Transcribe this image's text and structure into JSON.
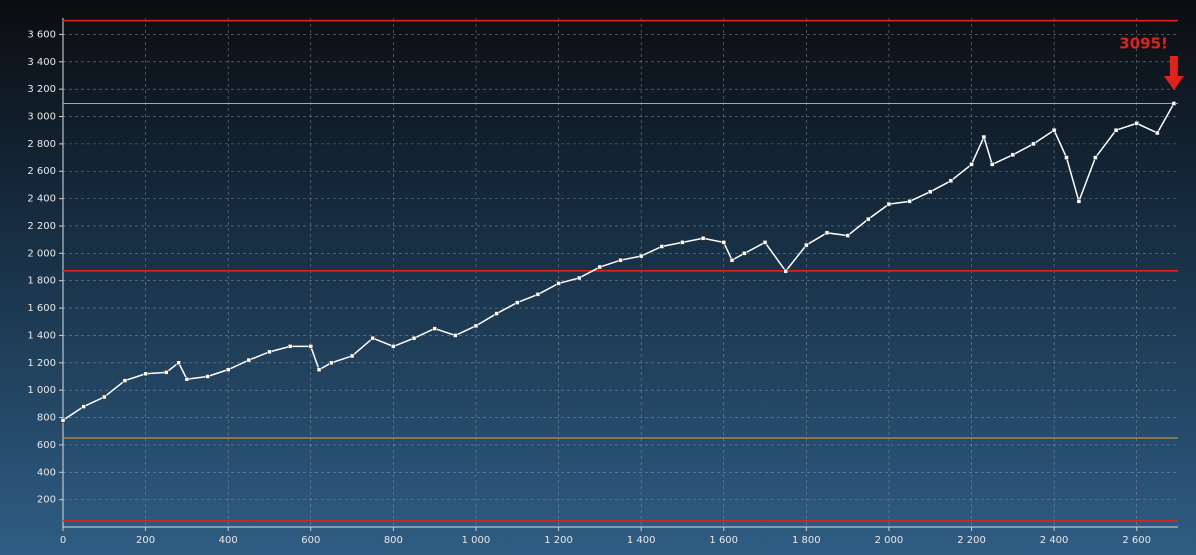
{
  "chart_data": {
    "type": "line",
    "annotation": "3095!",
    "x": [
      0,
      50,
      100,
      150,
      200,
      250,
      280,
      300,
      350,
      400,
      450,
      500,
      550,
      600,
      620,
      650,
      700,
      750,
      800,
      850,
      900,
      950,
      1000,
      1050,
      1100,
      1150,
      1200,
      1250,
      1300,
      1350,
      1400,
      1450,
      1500,
      1550,
      1600,
      1620,
      1650,
      1700,
      1750,
      1800,
      1850,
      1900,
      1950,
      2000,
      2050,
      2100,
      2150,
      2200,
      2230,
      2250,
      2300,
      2350,
      2400,
      2430,
      2460,
      2500,
      2550,
      2600,
      2650,
      2690
    ],
    "values": [
      780,
      880,
      950,
      1070,
      1120,
      1130,
      1200,
      1080,
      1100,
      1150,
      1220,
      1280,
      1320,
      1320,
      1150,
      1200,
      1250,
      1380,
      1320,
      1380,
      1450,
      1400,
      1470,
      1560,
      1640,
      1700,
      1780,
      1820,
      1900,
      1950,
      1980,
      2050,
      2080,
      2110,
      2080,
      1950,
      2000,
      2080,
      1870,
      2060,
      2150,
      2130,
      2250,
      2360,
      2380,
      2450,
      2530,
      2650,
      2850,
      2650,
      2720,
      2800,
      2900,
      2700,
      2380,
      2700,
      2900,
      2950,
      2880,
      3095
    ],
    "color": "#ffffff",
    "reference_lines": [
      {
        "value": 3700,
        "color": "#e0211d"
      },
      {
        "value": 3095,
        "color": "#e89a3c"
      },
      {
        "value": 1872,
        "color": "#e0211d"
      },
      {
        "value": 650,
        "color": "#e89a3c"
      },
      {
        "value": 44,
        "color": "#e0211d"
      }
    ],
    "xlim": [
      0,
      2700
    ],
    "ylim": [
      0,
      3720
    ],
    "xticks": [
      0,
      200,
      400,
      600,
      800,
      {
        "value": 1000,
        "label": "1 000"
      },
      {
        "value": 1200,
        "label": "1 200"
      },
      {
        "value": 1400,
        "label": "1 400"
      },
      {
        "value": 1600,
        "label": "1 600"
      },
      {
        "value": 1800,
        "label": "1 800"
      },
      {
        "value": 2000,
        "label": "2 000"
      },
      {
        "value": 2200,
        "label": "2 200"
      },
      {
        "value": 2400,
        "label": "2 400"
      },
      {
        "value": 2600,
        "label": "2 600"
      }
    ],
    "yticks": [
      200,
      400,
      600,
      800,
      {
        "value": 1000,
        "label": "1 000"
      },
      {
        "value": 1200,
        "label": "1 200"
      },
      {
        "value": 1400,
        "label": "1 400"
      },
      {
        "value": 1600,
        "label": "1 600"
      },
      {
        "value": 1800,
        "label": "1 800"
      },
      {
        "value": 2000,
        "label": "2 000"
      },
      {
        "value": 2200,
        "label": "2 200"
      },
      {
        "value": 2400,
        "label": "2 400"
      },
      {
        "value": 2600,
        "label": "2 600"
      },
      {
        "value": 2800,
        "label": "2 800"
      },
      {
        "value": 3000,
        "label": "3 000"
      },
      {
        "value": 3200,
        "label": "3 200"
      },
      {
        "value": 3400,
        "label": "3 400"
      },
      {
        "value": 3600,
        "label": "3 600"
      }
    ],
    "grid": true
  }
}
